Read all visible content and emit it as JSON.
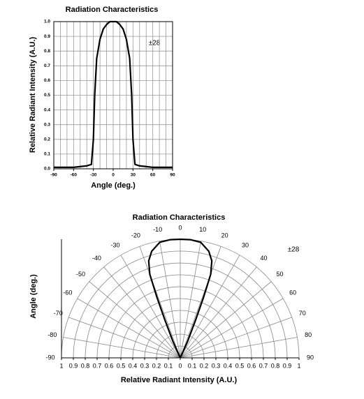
{
  "chart_data": [
    {
      "type": "line",
      "title": "Radiation Characteristics",
      "xlabel": "Angle (deg.)",
      "ylabel": "Relative Radiant Intensity (A.U.)",
      "annotation": "±28",
      "x": [
        -90,
        -60,
        -40,
        -33,
        -30,
        -28,
        -25,
        -20,
        -15,
        -10,
        -5,
        0,
        5,
        10,
        15,
        20,
        25,
        28,
        30,
        33,
        40,
        60,
        90
      ],
      "values": [
        0.01,
        0.01,
        0.02,
        0.03,
        0.2,
        0.5,
        0.75,
        0.88,
        0.95,
        0.98,
        1.0,
        1.0,
        1.0,
        0.98,
        0.95,
        0.88,
        0.75,
        0.5,
        0.2,
        0.03,
        0.02,
        0.01,
        0.01
      ],
      "color": "#000000",
      "xlim": [
        -90,
        90
      ],
      "ylim": [
        0,
        1
      ],
      "xticks": [
        -90,
        -60,
        -30,
        0,
        30,
        60,
        90
      ],
      "xminor": [
        -80,
        -70,
        -50,
        -40,
        -20,
        -10,
        10,
        20,
        40,
        50,
        70,
        80
      ],
      "yticks": [
        {
          "value": 0,
          "label": "0.0"
        },
        0.1,
        0.2,
        0.3,
        0.4,
        0.5,
        0.6,
        0.7,
        0.8,
        0.9,
        {
          "value": 1,
          "label": "1.0"
        }
      ],
      "grid": true
    },
    {
      "type": "polar",
      "title": "Radiation Characteristics",
      "xlabel": "Relative Radiant Intensity (A.U.)",
      "ylabel": "Angle (deg.)",
      "annotation": "±28",
      "theta": [
        -28,
        -24,
        -22,
        -21,
        -20,
        -18,
        -15,
        -10,
        -5,
        0,
        5,
        10,
        15,
        18,
        20,
        21,
        22,
        24,
        28
      ],
      "values": [
        0,
        0.15,
        0.35,
        0.55,
        0.75,
        0.86,
        0.93,
        0.99,
        1,
        1,
        1,
        0.99,
        0.93,
        0.86,
        0.75,
        0.55,
        0.35,
        0.15,
        0
      ],
      "color": "#000000",
      "rlim": [
        0,
        1
      ],
      "thetalim": [
        -90,
        90
      ],
      "rticks": [
        0,
        0.1,
        0.2,
        0.3,
        0.4,
        0.5,
        0.6,
        0.7,
        0.8,
        0.9,
        1
      ],
      "thetaticks": [
        -90,
        -80,
        -70,
        -60,
        -50,
        -40,
        -30,
        -20,
        -10,
        0,
        10,
        20,
        30,
        40,
        50,
        60,
        70,
        80,
        90
      ],
      "grid": true
    }
  ]
}
